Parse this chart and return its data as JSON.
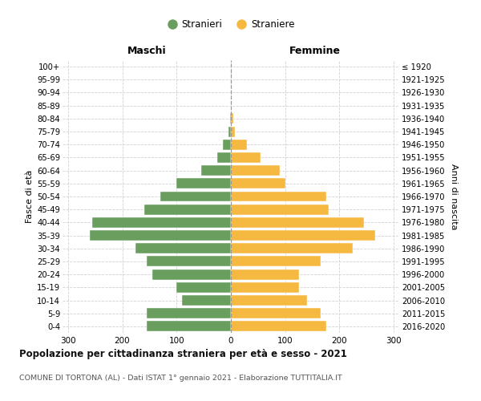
{
  "age_groups": [
    "0-4",
    "5-9",
    "10-14",
    "15-19",
    "20-24",
    "25-29",
    "30-34",
    "35-39",
    "40-44",
    "45-49",
    "50-54",
    "55-59",
    "60-64",
    "65-69",
    "70-74",
    "75-79",
    "80-84",
    "85-89",
    "90-94",
    "95-99",
    "100+"
  ],
  "birth_years": [
    "2016-2020",
    "2011-2015",
    "2006-2010",
    "2001-2005",
    "1996-2000",
    "1991-1995",
    "1986-1990",
    "1981-1985",
    "1976-1980",
    "1971-1975",
    "1966-1970",
    "1961-1965",
    "1956-1960",
    "1951-1955",
    "1946-1950",
    "1941-1945",
    "1936-1940",
    "1931-1935",
    "1926-1930",
    "1921-1925",
    "≤ 1920"
  ],
  "males": [
    155,
    155,
    90,
    100,
    145,
    155,
    175,
    260,
    255,
    160,
    130,
    100,
    55,
    25,
    15,
    4,
    2,
    0,
    0,
    0,
    0
  ],
  "females": [
    175,
    165,
    140,
    125,
    125,
    165,
    225,
    265,
    245,
    180,
    175,
    100,
    90,
    55,
    30,
    8,
    5,
    0,
    0,
    0,
    0
  ],
  "male_color": "#6a9e5f",
  "female_color": "#f5b942",
  "title": "Popolazione per cittadinanza straniera per età e sesso - 2021",
  "subtitle": "COMUNE DI TORTONA (AL) - Dati ISTAT 1° gennaio 2021 - Elaborazione TUTTITALIA.IT",
  "label_maschi": "Maschi",
  "label_femmine": "Femmine",
  "ylabel_left": "Fasce di età",
  "ylabel_right": "Anni di nascita",
  "xlim": 310,
  "xtick_vals": [
    -300,
    -200,
    -100,
    0,
    100,
    200,
    300
  ],
  "legend_stranieri": "Stranieri",
  "legend_straniere": "Straniere",
  "grid_color": "#cccccc"
}
